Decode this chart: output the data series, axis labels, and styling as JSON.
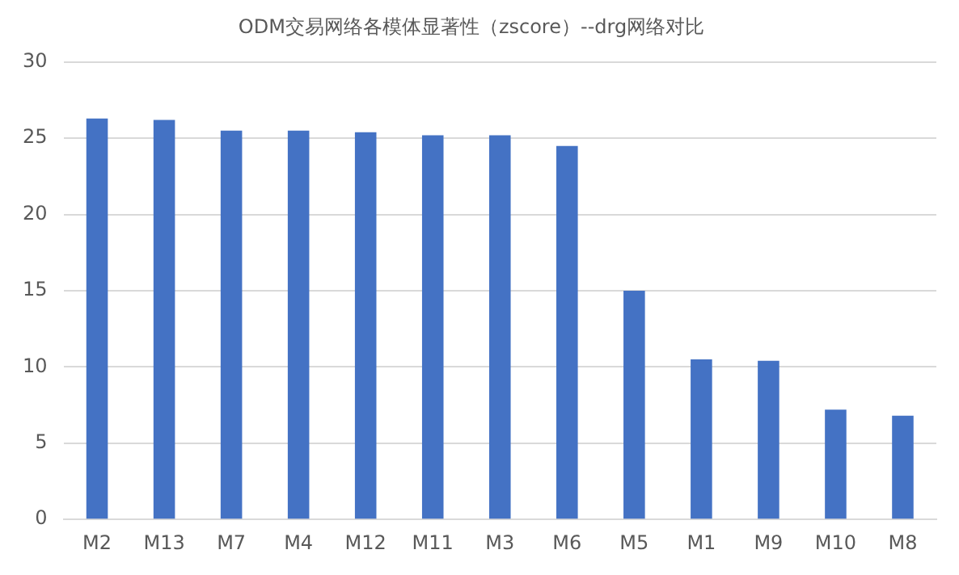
{
  "chart_data": {
    "type": "bar",
    "title": "ODM交易网络各模体显著性（zscore）--drg网络对比",
    "categories": [
      "M2",
      "M13",
      "M7",
      "M4",
      "M12",
      "M11",
      "M3",
      "M6",
      "M5",
      "M1",
      "M9",
      "M10",
      "M8"
    ],
    "values": [
      26.3,
      26.2,
      25.5,
      25.5,
      25.4,
      25.2,
      25.2,
      24.5,
      15.0,
      10.5,
      10.4,
      7.2,
      6.8
    ],
    "color": "#4472c4",
    "ylim": [
      0,
      30
    ],
    "yticks": [
      0,
      5,
      10,
      15,
      20,
      25,
      30
    ],
    "grid": "y"
  }
}
